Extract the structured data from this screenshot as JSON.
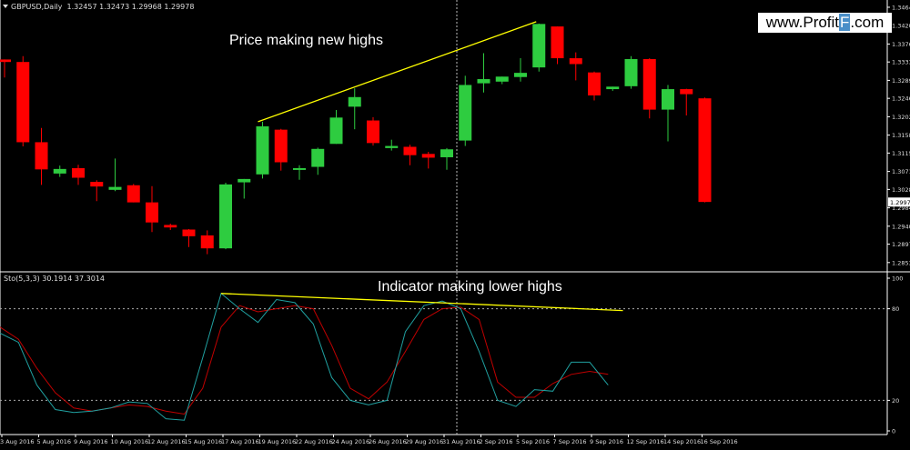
{
  "header": {
    "symbol_timeframe": "GBPUSD,Daily",
    "ohlc": "1.32457 1.32473 1.29968 1.29978"
  },
  "indicator": {
    "title": "Sto(5,3,3) 30.1914 37.3014"
  },
  "annotations": {
    "price": "Price making new highs",
    "indicator": "Indicator making lower highs"
  },
  "watermark": {
    "prefix": "www.Profit",
    "accent": "F",
    "suffix": ".com"
  },
  "colors": {
    "background": "#000000",
    "bull": "#2ecc40",
    "bear": "#ff0000",
    "trendline": "#ffff00",
    "stoch_main": "#20a0a0",
    "stoch_signal": "#c00000",
    "grid": "#ffffff"
  },
  "chart_data": [
    {
      "type": "candlestick",
      "title": "GBPUSD,Daily",
      "current_price": "1.29978",
      "ylim": [
        1.2833,
        1.3477
      ],
      "y_ticks": [
        "1.34640",
        "1.34200",
        "1.33760",
        "1.33330",
        "1.32890",
        "1.32460",
        "1.32020",
        "1.31580",
        "1.31150",
        "1.30710",
        "1.30280",
        "1.29840",
        "1.29400",
        "1.28970",
        "1.28530"
      ],
      "x_labels": [
        "3 Aug 2016",
        "5 Aug 2016",
        "9 Aug 2016",
        "10 Aug 2016",
        "12 Aug 2016",
        "15 Aug 2016",
        "17 Aug 2016",
        "19 Aug 2016",
        "22 Aug 2016",
        "24 Aug 2016",
        "26 Aug 2016",
        "29 Aug 2016",
        "31 Aug 2016",
        "2 Sep 2016",
        "5 Sep 2016",
        "7 Sep 2016",
        "9 Sep 2016",
        "12 Sep 2016",
        "14 Sep 2016",
        "16 Sep 2016"
      ],
      "candles": [
        {
          "o": 1.3339,
          "h": 1.3338,
          "c": 1.3333,
          "l": 1.3296
        },
        {
          "o": 1.3333,
          "h": 1.3347,
          "c": 1.3141,
          "l": 1.3131
        },
        {
          "o": 1.3141,
          "h": 1.3175,
          "c": 1.3076,
          "l": 1.3039
        },
        {
          "o": 1.3066,
          "h": 1.3085,
          "c": 1.3077,
          "l": 1.3058
        },
        {
          "o": 1.3079,
          "h": 1.3087,
          "c": 1.3056,
          "l": 1.3039
        },
        {
          "o": 1.3046,
          "h": 1.305,
          "c": 1.3035,
          "l": 1.3
        },
        {
          "o": 1.3027,
          "h": 1.3102,
          "c": 1.3034,
          "l": 1.3024
        },
        {
          "o": 1.3038,
          "h": 1.3041,
          "c": 1.2997,
          "l": 1.2997
        },
        {
          "o": 1.2997,
          "h": 1.3036,
          "c": 1.2949,
          "l": 1.2926
        },
        {
          "o": 1.2943,
          "h": 1.2946,
          "c": 1.2937,
          "l": 1.2931
        },
        {
          "o": 1.2932,
          "h": 1.2933,
          "c": 1.2916,
          "l": 1.289
        },
        {
          "o": 1.2918,
          "h": 1.293,
          "c": 1.2887,
          "l": 1.2873
        },
        {
          "o": 1.2887,
          "h": 1.3044,
          "c": 1.304,
          "l": 1.2885
        },
        {
          "o": 1.3045,
          "h": 1.3047,
          "c": 1.3053,
          "l": 1.3006
        },
        {
          "o": 1.3064,
          "h": 1.319,
          "c": 1.3179,
          "l": 1.3054
        },
        {
          "o": 1.3171,
          "h": 1.3173,
          "c": 1.3093,
          "l": 1.3073
        },
        {
          "o": 1.3075,
          "h": 1.3086,
          "c": 1.3079,
          "l": 1.3051
        },
        {
          "o": 1.3082,
          "h": 1.3128,
          "c": 1.3125,
          "l": 1.3063
        },
        {
          "o": 1.3137,
          "h": 1.3218,
          "c": 1.32,
          "l": 1.3137
        },
        {
          "o": 1.3226,
          "h": 1.327,
          "c": 1.3249,
          "l": 1.3172
        },
        {
          "o": 1.3193,
          "h": 1.3201,
          "c": 1.3139,
          "l": 1.3133
        },
        {
          "o": 1.3127,
          "h": 1.3147,
          "c": 1.3132,
          "l": 1.3121
        },
        {
          "o": 1.313,
          "h": 1.3135,
          "c": 1.311,
          "l": 1.3086
        },
        {
          "o": 1.3113,
          "h": 1.3118,
          "c": 1.3104,
          "l": 1.3078
        },
        {
          "o": 1.3105,
          "h": 1.3127,
          "c": 1.3124,
          "l": 1.3075
        },
        {
          "o": 1.3145,
          "h": 1.33,
          "c": 1.3278,
          "l": 1.3132
        },
        {
          "o": 1.3282,
          "h": 1.3354,
          "c": 1.3292,
          "l": 1.326
        },
        {
          "o": 1.3286,
          "h": 1.3298,
          "c": 1.3298,
          "l": 1.328
        },
        {
          "o": 1.3297,
          "h": 1.3342,
          "c": 1.3307,
          "l": 1.3286
        },
        {
          "o": 1.332,
          "h": 1.3425,
          "c": 1.3424,
          "l": 1.331
        },
        {
          "o": 1.3418,
          "h": 1.3418,
          "c": 1.3342,
          "l": 1.3328
        },
        {
          "o": 1.3342,
          "h": 1.3356,
          "c": 1.3328,
          "l": 1.3289
        },
        {
          "o": 1.3308,
          "h": 1.331,
          "c": 1.3253,
          "l": 1.3241
        },
        {
          "o": 1.3268,
          "h": 1.3272,
          "c": 1.3274,
          "l": 1.3264
        },
        {
          "o": 1.3275,
          "h": 1.3347,
          "c": 1.334,
          "l": 1.3269
        },
        {
          "o": 1.334,
          "h": 1.3342,
          "c": 1.3219,
          "l": 1.3198
        },
        {
          "o": 1.3219,
          "h": 1.3278,
          "c": 1.3268,
          "l": 1.3143
        },
        {
          "o": 1.3268,
          "h": 1.3269,
          "c": 1.3256,
          "l": 1.3205
        },
        {
          "o": 1.3246,
          "h": 1.3248,
          "c": 1.2998,
          "l": 1.2997
        }
      ]
    },
    {
      "type": "line",
      "title": "Sto(5,3,3) 30.1914 37.3014",
      "ylim": [
        0,
        100
      ],
      "y_ticks": [
        "100",
        "80",
        "20",
        "0"
      ],
      "levels": [
        80,
        20
      ],
      "series": [
        {
          "name": "main",
          "values": [
            64,
            58,
            30,
            14,
            12,
            13,
            15,
            19,
            18,
            8,
            7,
            48,
            90,
            80,
            71,
            86,
            84,
            70,
            35,
            20,
            17,
            20,
            65,
            82,
            85,
            80,
            52,
            20,
            16,
            27,
            26,
            45,
            45,
            30
          ]
        },
        {
          "name": "signal",
          "values": [
            68,
            60,
            41,
            25,
            15,
            13,
            15,
            17,
            16,
            13,
            11,
            28,
            68,
            82,
            78,
            80,
            82,
            80,
            56,
            28,
            21,
            32,
            52,
            73,
            80,
            81,
            73,
            32,
            22,
            22,
            31,
            37,
            39,
            37
          ]
        }
      ]
    }
  ]
}
